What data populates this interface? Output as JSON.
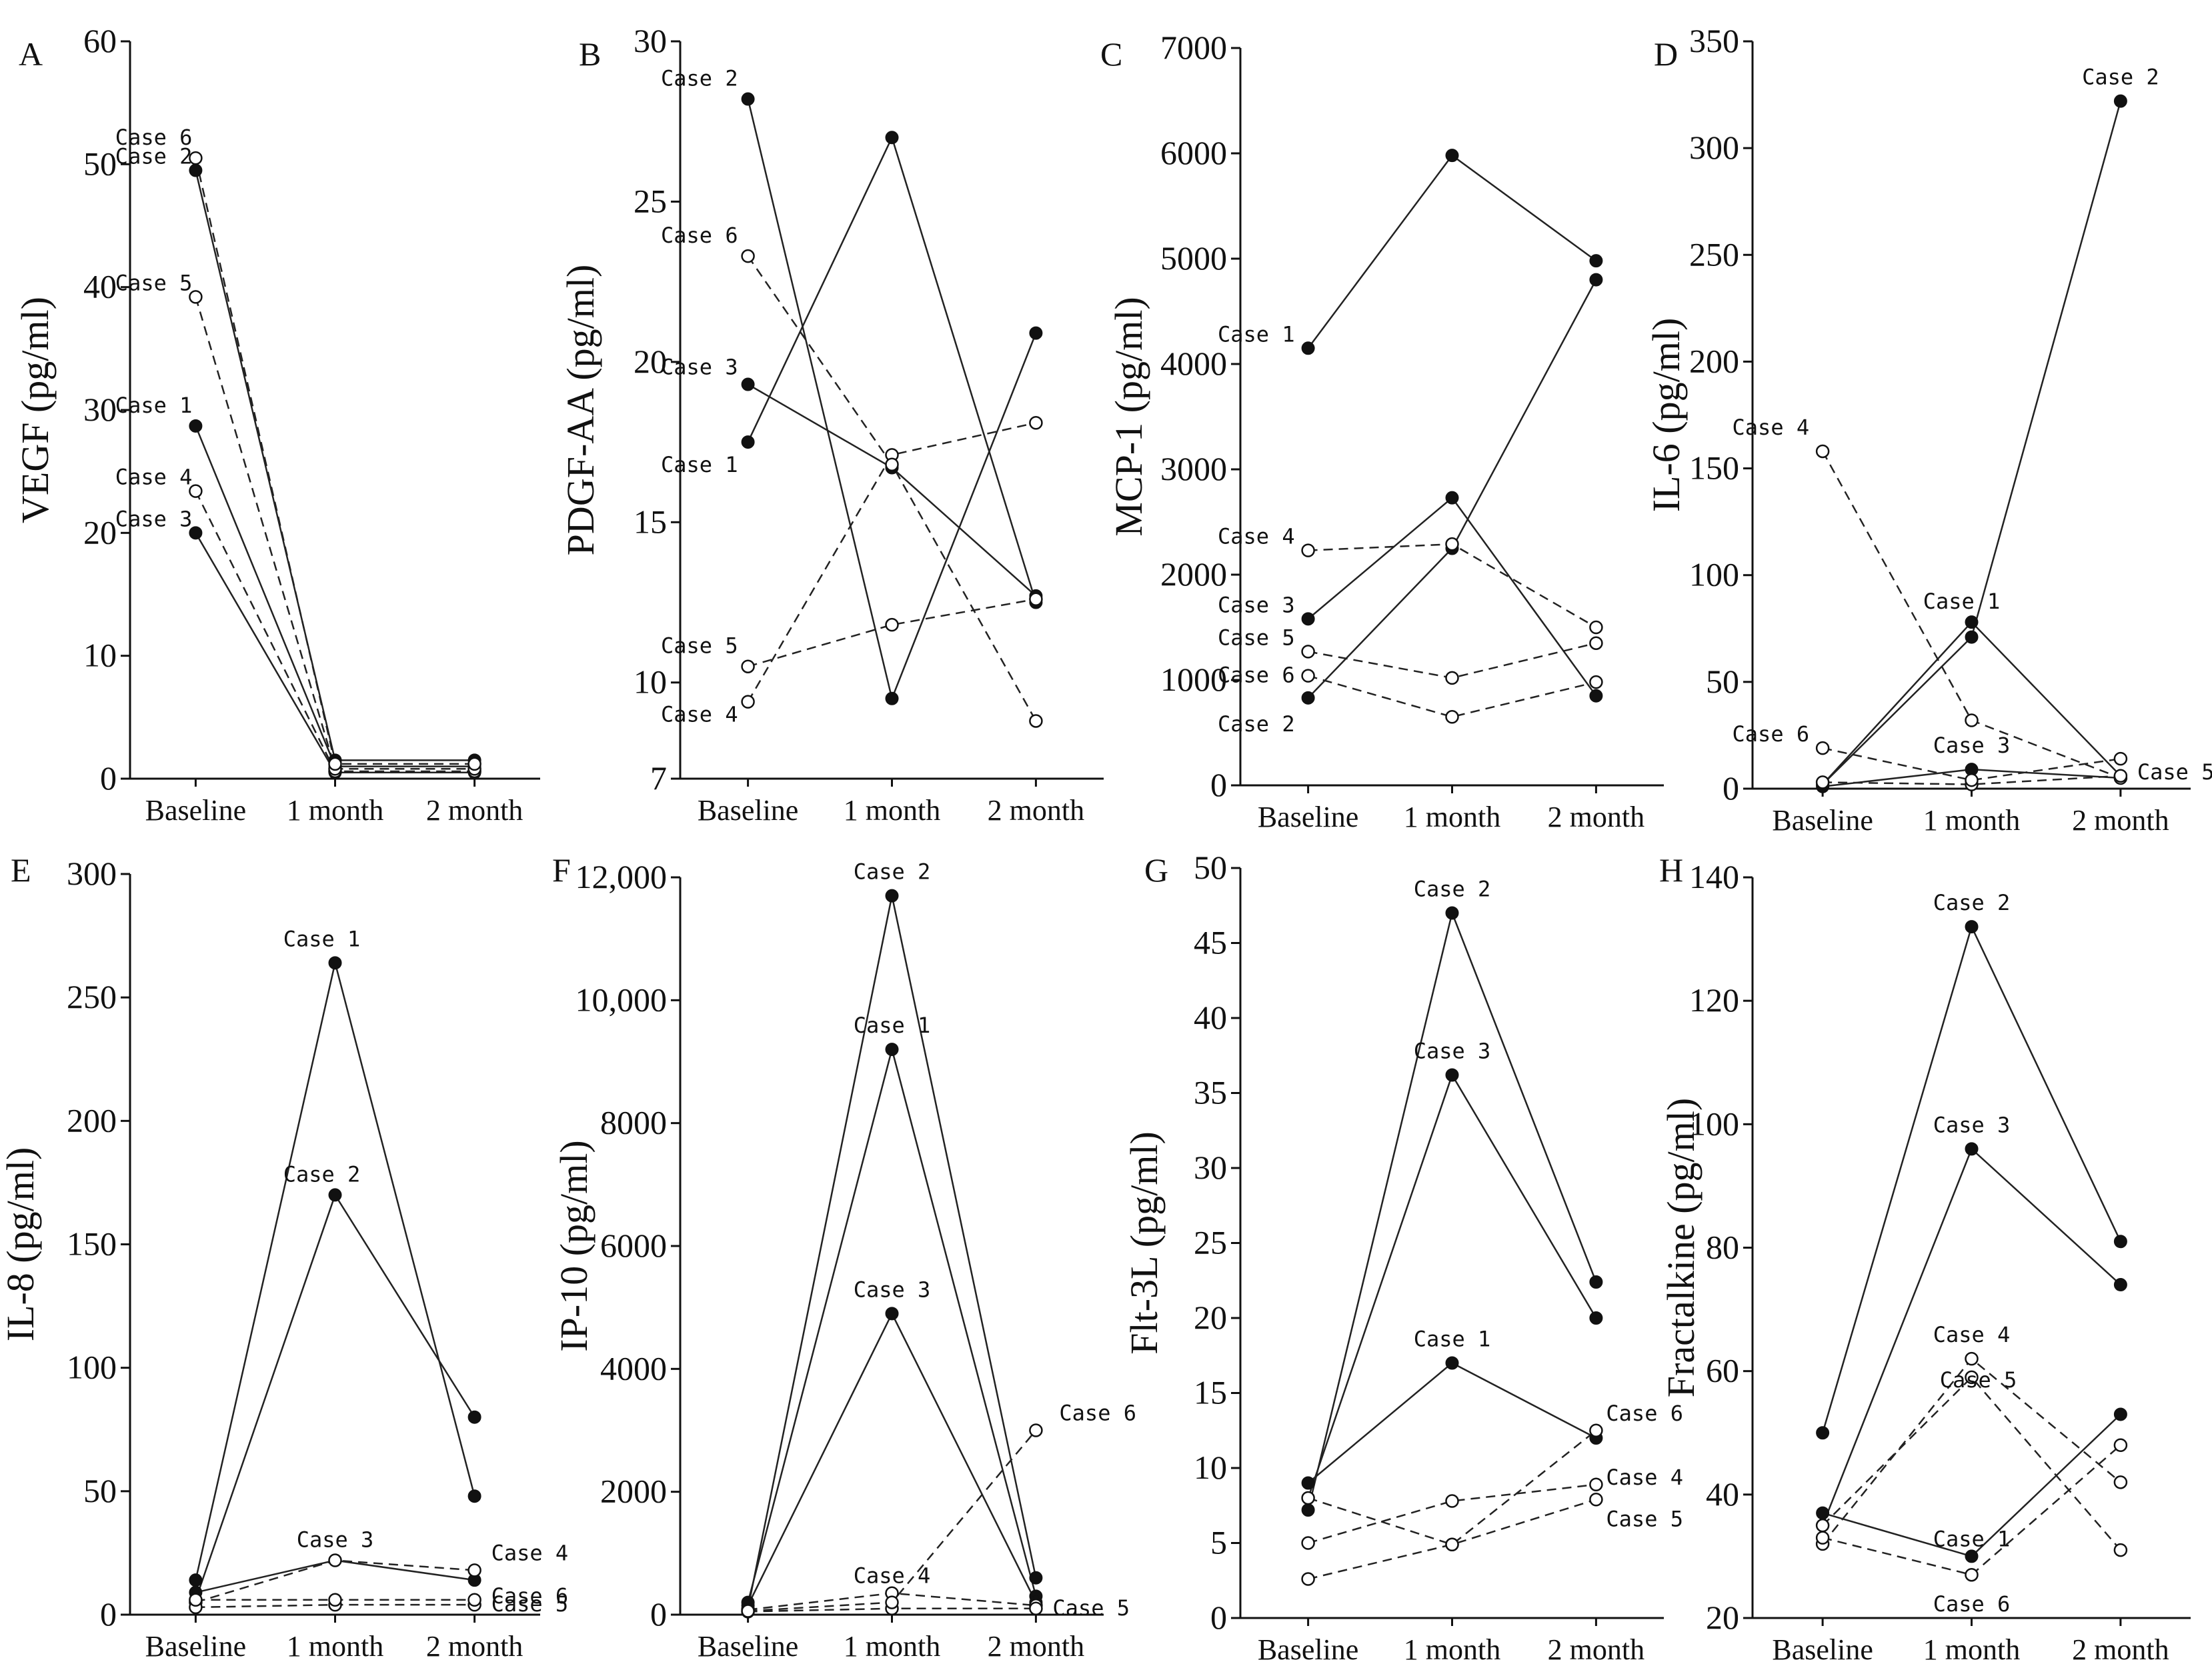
{
  "chart_data": [
    {
      "type": "line",
      "panel": "A",
      "ylabel": "VEGF (pg/ml)",
      "categories": [
        "Baseline",
        "1 month",
        "2 month"
      ],
      "ylim": [
        0,
        60
      ],
      "yticks": [
        0,
        10,
        20,
        30,
        40,
        50,
        60
      ],
      "ytick_labels": [
        "0",
        "10",
        "20",
        "30",
        "40",
        "50",
        "60"
      ],
      "series": [
        {
          "name": "Case 1",
          "label": "Case 1",
          "values": [
            28.7,
            1.0,
            1.0
          ],
          "marker": "filled",
          "dashed": false
        },
        {
          "name": "Case 2",
          "label": "Case 2",
          "values": [
            49.5,
            1.5,
            1.5
          ],
          "marker": "filled",
          "dashed": false
        },
        {
          "name": "Case 3",
          "label": "Case 3",
          "values": [
            20.0,
            0.5,
            0.5
          ],
          "marker": "filled",
          "dashed": false
        },
        {
          "name": "Case 4",
          "label": "Case 4",
          "values": [
            23.4,
            0.6,
            0.6
          ],
          "marker": "open",
          "dashed": true
        },
        {
          "name": "Case 5",
          "label": "Case 5",
          "values": [
            39.2,
            0.8,
            0.8
          ],
          "marker": "open",
          "dashed": true
        },
        {
          "name": "Case 6",
          "label": "Case 6",
          "values": [
            50.5,
            1.2,
            1.2
          ],
          "marker": "open",
          "dashed": true
        }
      ]
    },
    {
      "type": "line",
      "panel": "B",
      "ylabel": "PDGF-AA (pg/ml)",
      "categories": [
        "Baseline",
        "1 month",
        "2 month"
      ],
      "ylim": [
        7,
        30
      ],
      "yticks": [
        7,
        10,
        15,
        20,
        25,
        30
      ],
      "ytick_labels": [
        "7",
        "10",
        "15",
        "20",
        "25",
        "30"
      ],
      "series": [
        {
          "name": "Case 1",
          "label": "Case 1",
          "values": [
            17.5,
            27.0,
            12.5
          ],
          "marker": "filled",
          "dashed": false
        },
        {
          "name": "Case 2",
          "label": "Case 2",
          "values": [
            28.2,
            9.5,
            20.9
          ],
          "marker": "filled",
          "dashed": false
        },
        {
          "name": "Case 3",
          "label": "Case 3",
          "values": [
            19.3,
            16.7,
            12.7
          ],
          "marker": "filled",
          "dashed": false
        },
        {
          "name": "Case 4",
          "label": "Case 4",
          "values": [
            9.4,
            17.1,
            18.1
          ],
          "marker": "open",
          "dashed": true
        },
        {
          "name": "Case 5",
          "label": "Case 5",
          "values": [
            10.5,
            11.8,
            12.6
          ],
          "marker": "open",
          "dashed": true
        },
        {
          "name": "Case 6",
          "label": "Case 6",
          "values": [
            23.3,
            16.8,
            8.8
          ],
          "marker": "open",
          "dashed": true
        }
      ]
    },
    {
      "type": "line",
      "panel": "C",
      "ylabel": "MCP-1 (pg/ml)",
      "categories": [
        "Baseline",
        "1 month",
        "2 month"
      ],
      "ylim": [
        0,
        7000
      ],
      "yticks": [
        0,
        1000,
        2000,
        3000,
        4000,
        5000,
        6000,
        7000
      ],
      "ytick_labels": [
        "0",
        "1000",
        "2000",
        "3000",
        "4000",
        "5000",
        "6000",
        "7000"
      ],
      "series": [
        {
          "name": "Case 1",
          "label": "Case 1",
          "values": [
            4150,
            5980,
            4980
          ],
          "marker": "filled",
          "dashed": false
        },
        {
          "name": "Case 2",
          "label": "Case 2",
          "values": [
            830,
            2250,
            4800
          ],
          "marker": "filled",
          "dashed": false
        },
        {
          "name": "Case 3",
          "label": "Case 3",
          "values": [
            1580,
            2730,
            850
          ],
          "marker": "filled",
          "dashed": false
        },
        {
          "name": "Case 4",
          "label": "Case 4",
          "values": [
            2230,
            2290,
            1500
          ],
          "marker": "open",
          "dashed": true
        },
        {
          "name": "Case 5",
          "label": "Case 5",
          "values": [
            1270,
            1020,
            1350
          ],
          "marker": "open",
          "dashed": true
        },
        {
          "name": "Case 6",
          "label": "Case 6",
          "values": [
            1040,
            650,
            980
          ],
          "marker": "open",
          "dashed": true
        }
      ]
    },
    {
      "type": "line",
      "panel": "D",
      "ylabel": "IL-6 (pg/ml)",
      "categories": [
        "Baseline",
        "1 month",
        "2 month"
      ],
      "ylim": [
        0,
        350
      ],
      "yticks": [
        0,
        50,
        100,
        150,
        200,
        250,
        300,
        350
      ],
      "ytick_labels": [
        "0",
        "50",
        "100",
        "150",
        "200",
        "250",
        "300",
        "350"
      ],
      "series": [
        {
          "name": "Case 1",
          "label": "Case 1",
          "values": [
            2,
            78,
            6
          ],
          "marker": "filled",
          "dashed": false
        },
        {
          "name": "Case 2",
          "label": "Case 2",
          "values": [
            2,
            71,
            322
          ],
          "marker": "filled",
          "dashed": false
        },
        {
          "name": "Case 3",
          "label": "Case 3",
          "values": [
            1,
            9,
            5
          ],
          "marker": "filled",
          "dashed": false
        },
        {
          "name": "Case 4",
          "label": "Case 4",
          "values": [
            158,
            32,
            5
          ],
          "marker": "open",
          "dashed": true
        },
        {
          "name": "Case 5",
          "label": "Case 5",
          "values": [
            3,
            2,
            6
          ],
          "marker": "open",
          "dashed": true
        },
        {
          "name": "Case 6",
          "label": "Case 6",
          "values": [
            19,
            4,
            14
          ],
          "marker": "open",
          "dashed": true
        }
      ]
    },
    {
      "type": "line",
      "panel": "E",
      "ylabel": "IL-8 (pg/ml)",
      "categories": [
        "Baseline",
        "1 month",
        "2 month"
      ],
      "ylim": [
        0,
        300
      ],
      "yticks": [
        0,
        50,
        100,
        150,
        200,
        250,
        300
      ],
      "ytick_labels": [
        "0",
        "50",
        "100",
        "150",
        "200",
        "250",
        "300"
      ],
      "series": [
        {
          "name": "Case 1",
          "label": "Case 1",
          "values": [
            14,
            264,
            48
          ],
          "marker": "filled",
          "dashed": false
        },
        {
          "name": "Case 2",
          "label": "Case 2",
          "values": [
            6,
            170,
            80
          ],
          "marker": "filled",
          "dashed": false
        },
        {
          "name": "Case 3",
          "label": "Case 3",
          "values": [
            9,
            22,
            14
          ],
          "marker": "filled",
          "dashed": false
        },
        {
          "name": "Case 4",
          "label": "Case 4",
          "values": [
            5,
            22,
            18
          ],
          "marker": "open",
          "dashed": true
        },
        {
          "name": "Case 5",
          "label": "Case 5",
          "values": [
            3,
            4,
            4
          ],
          "marker": "open",
          "dashed": true
        },
        {
          "name": "Case 6",
          "label": "Case 6",
          "values": [
            6,
            6,
            6
          ],
          "marker": "open",
          "dashed": true
        }
      ]
    },
    {
      "type": "line",
      "panel": "F",
      "ylabel": "IP-10 (pg/ml)",
      "categories": [
        "Baseline",
        "1 month",
        "2 month"
      ],
      "ylim": [
        0,
        12000
      ],
      "yticks": [
        0,
        2000,
        4000,
        6000,
        8000,
        10000,
        12000
      ],
      "ytick_labels": [
        "0",
        "2000",
        "4000",
        "6000",
        "8000",
        "10,000",
        "12,000"
      ],
      "series": [
        {
          "name": "Case 1",
          "label": "Case 1",
          "values": [
            200,
            9200,
            300
          ],
          "marker": "filled",
          "dashed": false
        },
        {
          "name": "Case 2",
          "label": "Case 2",
          "values": [
            100,
            11700,
            600
          ],
          "marker": "filled",
          "dashed": false
        },
        {
          "name": "Case 3",
          "label": "Case 3",
          "values": [
            150,
            4900,
            200
          ],
          "marker": "filled",
          "dashed": false
        },
        {
          "name": "Case 4",
          "label": "Case 4",
          "values": [
            80,
            350,
            150
          ],
          "marker": "open",
          "dashed": true
        },
        {
          "name": "Case 5",
          "label": "Case 5",
          "values": [
            50,
            100,
            100
          ],
          "marker": "open",
          "dashed": true
        },
        {
          "name": "Case 6",
          "label": "Case 6",
          "values": [
            60,
            200,
            3000
          ],
          "marker": "open",
          "dashed": true
        }
      ]
    },
    {
      "type": "line",
      "panel": "G",
      "ylabel": "Flt-3L (pg/ml)",
      "categories": [
        "Baseline",
        "1 month",
        "2 month"
      ],
      "ylim": [
        0,
        50
      ],
      "yticks": [
        0,
        5,
        10,
        15,
        20,
        25,
        30,
        35,
        40,
        45,
        50
      ],
      "ytick_labels": [
        "0",
        "5",
        "10",
        "15",
        "20",
        "25",
        "30",
        "35",
        "40",
        "45",
        "50"
      ],
      "series": [
        {
          "name": "Case 1",
          "label": "Case 1",
          "values": [
            9.0,
            17.0,
            12.0
          ],
          "marker": "filled",
          "dashed": false
        },
        {
          "name": "Case 2",
          "label": "Case 2",
          "values": [
            7.2,
            47.0,
            22.4
          ],
          "marker": "filled",
          "dashed": false
        },
        {
          "name": "Case 3",
          "label": "Case 3",
          "values": [
            8.0,
            36.2,
            20.0
          ],
          "marker": "filled",
          "dashed": false
        },
        {
          "name": "Case 4",
          "label": "Case 4",
          "values": [
            5.0,
            7.8,
            8.9
          ],
          "marker": "open",
          "dashed": true
        },
        {
          "name": "Case 5",
          "label": "Case 5",
          "values": [
            2.6,
            4.9,
            7.9
          ],
          "marker": "open",
          "dashed": true
        },
        {
          "name": "Case 6",
          "label": "Case 6",
          "values": [
            8.0,
            4.9,
            12.5
          ],
          "marker": "open",
          "dashed": true
        }
      ]
    },
    {
      "type": "line",
      "panel": "H",
      "ylabel": "Fractalkine (pg/ml)",
      "categories": [
        "Baseline",
        "1 month",
        "2 month"
      ],
      "ylim": [
        20,
        140
      ],
      "yticks": [
        20,
        40,
        60,
        80,
        100,
        120,
        140
      ],
      "ytick_labels": [
        "20",
        "40",
        "60",
        "80",
        "100",
        "120",
        "140"
      ],
      "series": [
        {
          "name": "Case 1",
          "label": "Case 1",
          "values": [
            37,
            30,
            53
          ],
          "marker": "filled",
          "dashed": false
        },
        {
          "name": "Case 2",
          "label": "Case 2",
          "values": [
            50,
            132,
            81
          ],
          "marker": "filled",
          "dashed": false
        },
        {
          "name": "Case 3",
          "label": "Case 3",
          "values": [
            35,
            96,
            74
          ],
          "marker": "filled",
          "dashed": false
        },
        {
          "name": "Case 4",
          "label": "Case 4",
          "values": [
            32,
            62,
            42
          ],
          "marker": "open",
          "dashed": true
        },
        {
          "name": "Case 5",
          "label": "Case 5",
          "values": [
            35,
            59,
            31
          ],
          "marker": "open",
          "dashed": true
        },
        {
          "name": "Case 6",
          "label": "Case 6",
          "values": [
            33,
            27,
            48
          ],
          "marker": "open",
          "dashed": true
        }
      ]
    }
  ]
}
